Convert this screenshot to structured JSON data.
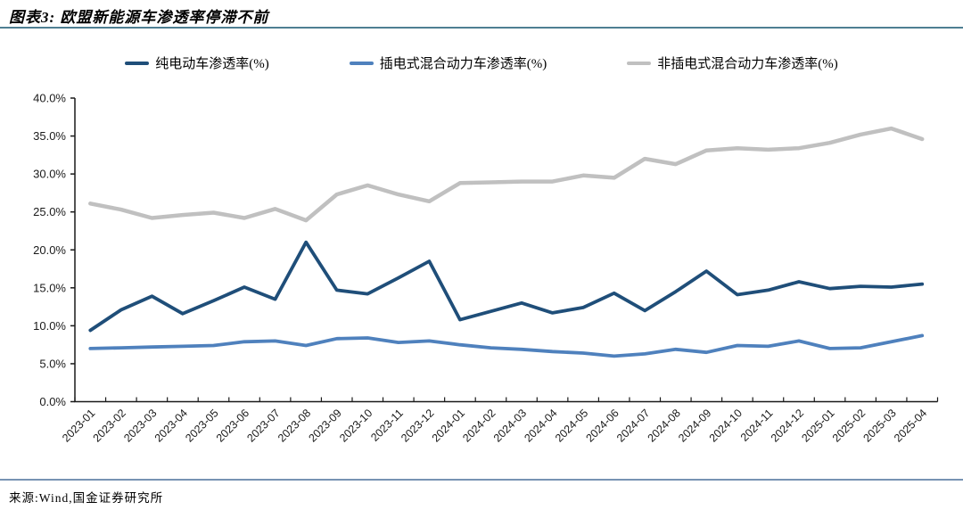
{
  "header": {
    "title": "图表3: 欧盟新能源车渗透率停滞不前"
  },
  "footer": {
    "source": "来源:Wind,国金证券研究所"
  },
  "colors": {
    "title_rule": "#4e7f92",
    "footer_rule": "#7793b3",
    "axis": "#1a1a1a",
    "bev_line": "#1f4e79",
    "phev_line": "#4f81bd",
    "hev_line": "#c0c0c0"
  },
  "chart_data": {
    "type": "line",
    "title": "图表3: 欧盟新能源车渗透率停滞不前",
    "xlabel": "",
    "ylabel": "",
    "ylim": [
      0,
      40
    ],
    "ytick_step": 5,
    "ytick_labels": [
      "0.0%",
      "5.0%",
      "10.0%",
      "15.0%",
      "20.0%",
      "25.0%",
      "30.0%",
      "35.0%",
      "40.0%"
    ],
    "grid": false,
    "legend_position": "top",
    "categories": [
      "2023-01",
      "2023-02",
      "2023-03",
      "2023-04",
      "2023-05",
      "2023-06",
      "2023-07",
      "2023-08",
      "2023-09",
      "2023-10",
      "2023-11",
      "2023-12",
      "2024-01",
      "2024-02",
      "2024-03",
      "2024-04",
      "2024-05",
      "2024-06",
      "2024-07",
      "2024-08",
      "2024-09",
      "2024-10",
      "2024-11",
      "2024-12",
      "2025-01",
      "2025-02",
      "2025-03",
      "2025-04"
    ],
    "series": [
      {
        "key": "bev",
        "name": "纯电动车渗透率(%)",
        "color": "#1f4e79",
        "values": [
          9.4,
          12.1,
          13.9,
          11.6,
          13.3,
          15.1,
          13.5,
          21.0,
          14.7,
          14.2,
          16.3,
          18.5,
          10.8,
          11.9,
          13.0,
          11.7,
          12.4,
          14.3,
          12.0,
          14.5,
          17.2,
          14.1,
          14.7,
          15.8,
          14.9,
          15.2,
          15.1,
          15.5
        ]
      },
      {
        "key": "phev",
        "name": "插电式混合动力车渗透率(%)",
        "color": "#4f81bd",
        "values": [
          7.0,
          7.1,
          7.2,
          7.3,
          7.4,
          7.9,
          8.0,
          7.4,
          8.3,
          8.4,
          7.8,
          8.0,
          7.5,
          7.1,
          6.9,
          6.6,
          6.4,
          6.0,
          6.3,
          6.9,
          6.5,
          7.4,
          7.3,
          8.0,
          7.0,
          7.1,
          7.9,
          8.7
        ]
      },
      {
        "key": "hev",
        "name": "非插电式混合动力车渗透率(%)",
        "color": "#c0c0c0",
        "values": [
          26.1,
          25.3,
          24.2,
          24.6,
          24.9,
          24.2,
          25.4,
          23.9,
          27.3,
          28.5,
          27.3,
          26.4,
          28.8,
          28.9,
          29.0,
          29.0,
          29.8,
          29.5,
          32.0,
          31.3,
          33.1,
          33.4,
          33.2,
          33.4,
          34.1,
          35.2,
          36.0,
          34.6
        ]
      }
    ]
  }
}
